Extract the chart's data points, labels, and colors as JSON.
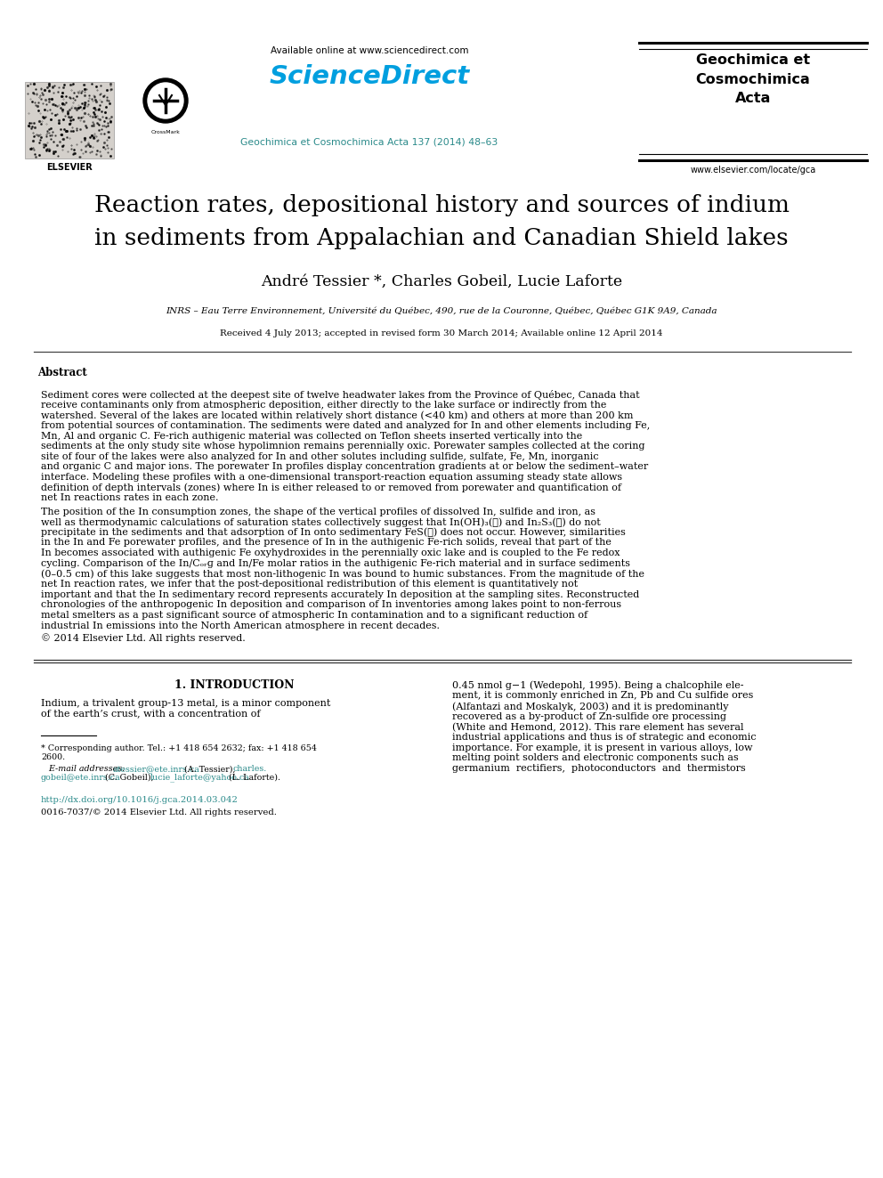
{
  "page_bg": "#ffffff",
  "available_online": "Available online at www.sciencedirect.com",
  "sciencedirect_text": "ScienceDirect",
  "journal_link": "Geochimica et Cosmochimica Acta 137 (2014) 48–63",
  "journal_name_right": "Geochimica et\nCosmochimica\nActa",
  "website_right": "www.elsevier.com/locate/gca",
  "elsevier_text": "ELSEVIER",
  "title_line1": "Reaction rates, depositional history and sources of indium",
  "title_line2": "in sediments from Appalachian and Canadian Shield lakes",
  "authors": "André Tessier *, Charles Gobeil, Lucie Laforte",
  "affiliation": "INRS – Eau Terre Environnement, Université du Québec, 490, rue de la Couronne, Québec, Québec G1K 9A9, Canada",
  "received": "Received 4 July 2013; accepted in revised form 30 March 2014; Available online 12 April 2014",
  "abstract_heading": "Abstract",
  "abstract_p1": "   Sediment cores were collected at the deepest site of twelve headwater lakes from the Province of Québec, Canada that receive contaminants only from atmospheric deposition, either directly to the lake surface or indirectly from the watershed. Several of the lakes are located within relatively short distance (<40 km) and others at more than 200 km from potential sources of contamination. The sediments were dated and analyzed for In and other elements including Fe, Mn, Al and organic C. Fe-rich authigenic material was collected on Teflon sheets inserted vertically into the sediments at the only study site whose hypolimnion remains perennially oxic. Porewater samples collected at the coring site of four of the lakes were also analyzed for In and other solutes including sulfide, sulfate, Fe, Mn, inorganic and organic C and major ions. The porewater In profiles display concentration gradients at or below the sediment–water interface. Modeling these profiles with a one-dimensional transport-reaction equation assuming steady state allows definition of depth intervals (zones) where In is either released to or removed from porewater and quantification of net In reactions rates in each zone.",
  "abstract_p2": "   The position of the In consumption zones, the shape of the vertical profiles of dissolved In, sulfide and iron, as well as thermodynamic calculations of saturation states collectively suggest that In(OH)₃(ℓ) and In₂S₃(ℓ) do not precipitate in the sediments and that adsorption of In onto sedimentary FeS(ℓ) does not occur. However, similarities in the In and Fe porewater profiles, and the presence of In in the authigenic Fe-rich solids, reveal that part of the In becomes associated with authigenic Fe oxyhydroxides in the perennially oxic lake and is coupled to the Fe redox cycling. Comparison of the In/Cₒᵣɡ and In/Fe molar ratios in the authigenic Fe-rich material and in surface sediments (0–0.5 cm) of this lake suggests that most non-lithogenic In was bound to humic substances. From the magnitude of the net In reaction rates, we infer that the post-depositional redistribution of this element is quantitatively not important and that the In sedimentary record represents accurately In deposition at the sampling sites. Reconstructed chronologies of the anthropogenic In deposition and comparison of In inventories among lakes point to non-ferrous metal smelters as a past significant source of atmospheric In contamination and to a significant reduction of industrial In emissions into the North American atmosphere in recent decades.",
  "copyright": "© 2014 Elsevier Ltd. All rights reserved.",
  "intro_heading": "1. INTRODUCTION",
  "intro_left": "   Indium, a trivalent group-13 metal, is a minor component of the earth’s crust, with a concentration of",
  "intro_right_lines": [
    "0.45 nmol g−1 (Wedepohl, 1995). Being a chalcophile ele-",
    "ment, it is commonly enriched in Zn, Pb and Cu sulfide ores",
    "(Alfantazi and Moskalyk, 2003) and it is predominantly",
    "recovered as a by-product of Zn-sulfide ore processing",
    "(White and Hemond, 2012). This rare element has several",
    "industrial applications and thus is of strategic and economic",
    "importance. For example, it is present in various alloys, low",
    "melting point solders and electronic components such as",
    "germanium  rectifiers,  photoconductors  and  thermistors"
  ],
  "footnote1": "* Corresponding author. Tel.: +1 418 654 2632; fax: +1 418 654",
  "footnote2": "2600.",
  "email_label": "   E-mail addresses: ",
  "email1": "atessier@ete.inrs.ca",
  "email1_suffix": " (A. Tessier), ",
  "email2": "charles.",
  "email2b": "gobeil@ete.inrs.ca",
  "email2_suffix": " (C. Gobeil), ",
  "email3": "lucie_laforte@yahoo.ca",
  "email3_suffix": " (L. Laforte).",
  "doi": "http://dx.doi.org/10.1016/j.gca.2014.03.042",
  "issn": "0016-7037/© 2014 Elsevier Ltd. All rights reserved.",
  "teal": "#2a8a8a",
  "blue": "#1a78c2",
  "sciencedirect_blue": "#009fdf",
  "black": "#000000"
}
